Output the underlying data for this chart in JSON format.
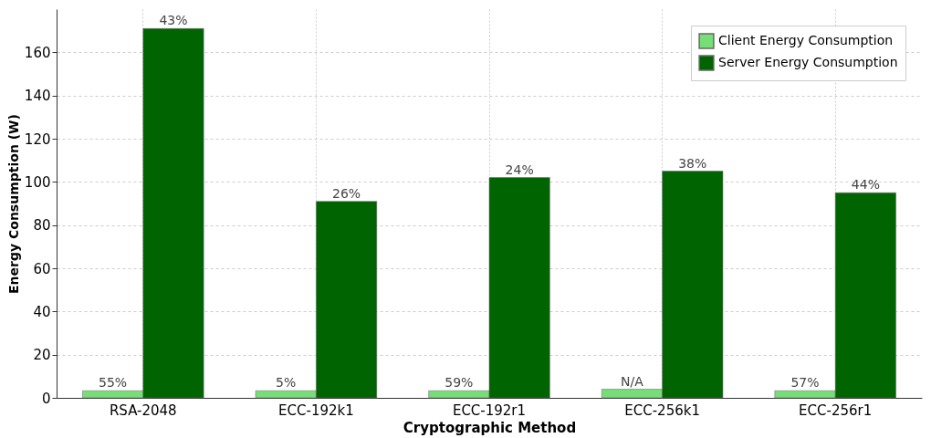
{
  "chart_data": {
    "type": "bar",
    "xlabel": "Cryptographic Method",
    "ylabel": "Energy Consumption (W)",
    "categories": [
      "RSA-2048",
      "ECC-192k1",
      "ECC-192r1",
      "ECC-256k1",
      "ECC-256r1"
    ],
    "series": [
      {
        "name": "Client Energy Consumption",
        "color": "#77dd77",
        "values": [
          3.3,
          3.3,
          3.3,
          4,
          3.3
        ]
      },
      {
        "name": "Server Energy Consumption",
        "color": "#006400",
        "values": [
          171,
          91,
          102,
          105,
          95
        ]
      }
    ],
    "annotations": [
      {
        "text": "55%",
        "x": "RSA-2048",
        "y": 3.3
      },
      {
        "text": "43%",
        "x": "RSA-2048",
        "y": 171
      },
      {
        "text": "5%",
        "x": "ECC-192k1",
        "y": 3.3
      },
      {
        "text": "26%",
        "x": "ECC-192k1",
        "y": 91
      },
      {
        "text": "59%",
        "x": "ECC-192r1",
        "y": 3.3
      },
      {
        "text": "24%",
        "x": "ECC-192r1",
        "y": 102
      },
      {
        "text": "N/A",
        "x": "ECC-256k1",
        "y": 4
      },
      {
        "text": "38%",
        "x": "ECC-256k1",
        "y": 105
      },
      {
        "text": "57%",
        "x": "ECC-256r1",
        "y": 3.3
      },
      {
        "text": "44%",
        "x": "ECC-256r1",
        "y": 95
      }
    ],
    "ylim": [
      0,
      180
    ],
    "yticks": [
      0,
      20,
      40,
      60,
      80,
      100,
      120,
      140,
      160
    ],
    "grid": true,
    "legend": "top right"
  }
}
